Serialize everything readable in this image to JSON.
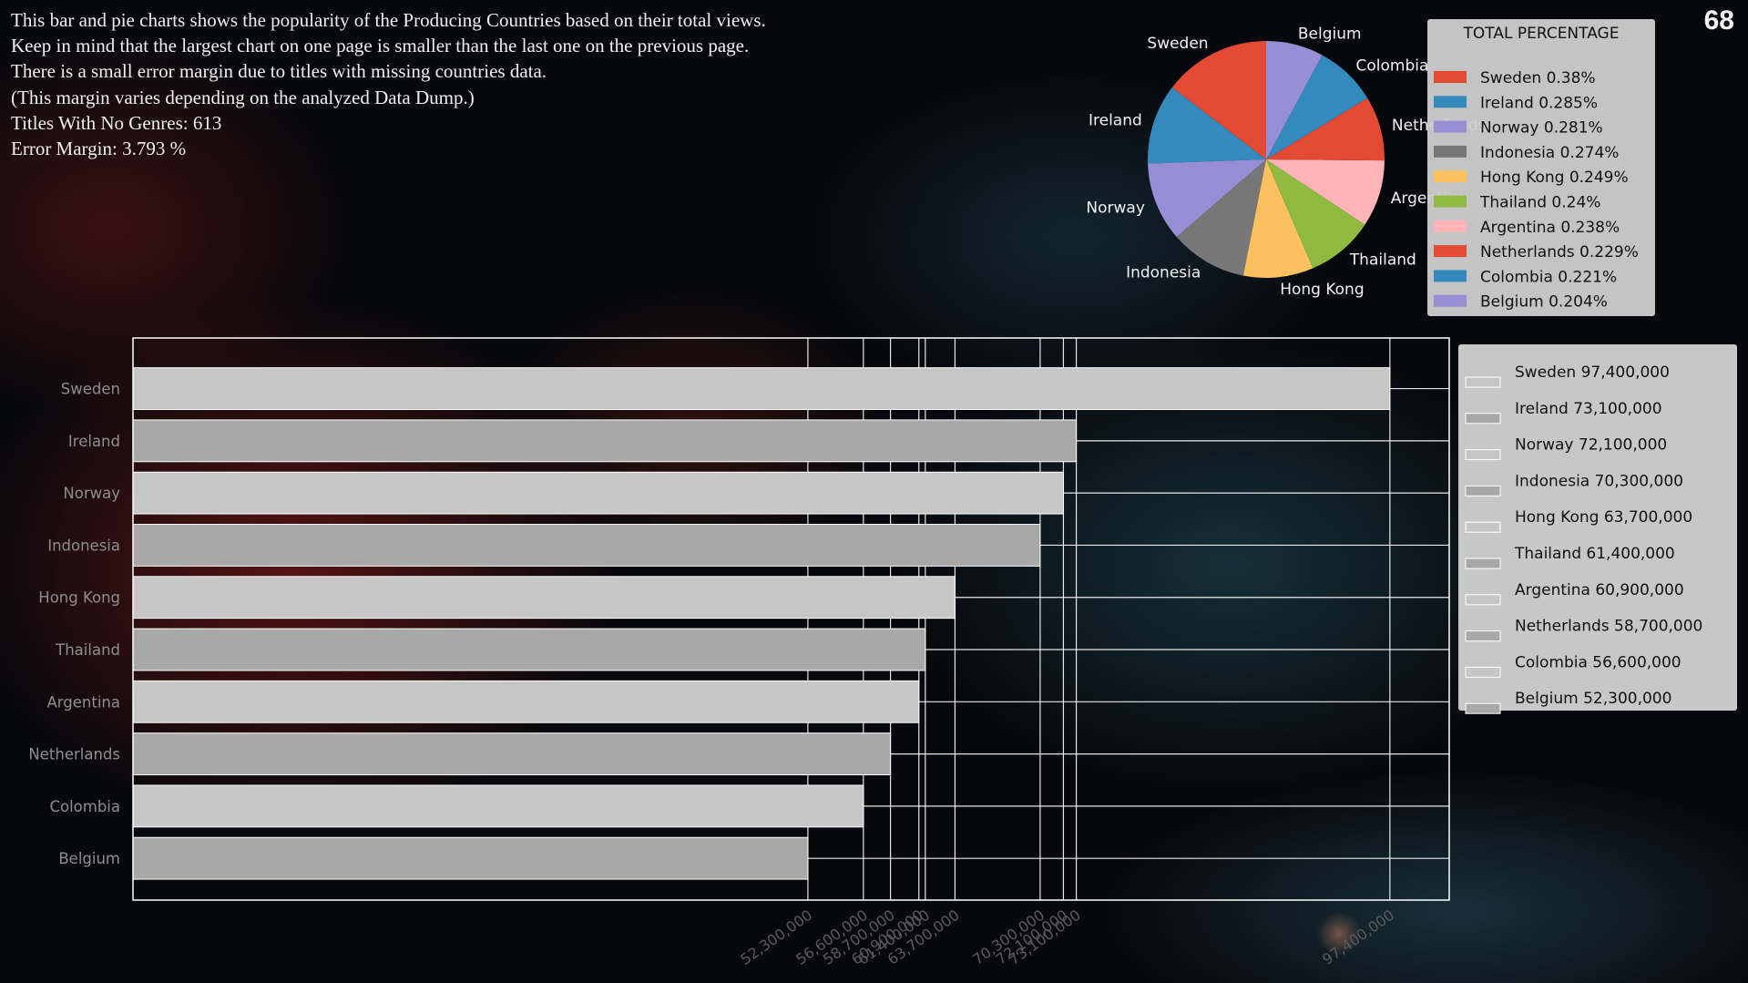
{
  "page": {
    "intro_lines": [
      "This bar and pie charts shows the popularity of the Producing Countries based on their total views.",
      "Keep in mind that the largest chart on one page is smaller than the last one on the previous page.",
      "There is a small error margin due to titles with missing countries data.",
      "(This margin varies depending on the analyzed Data Dump.)",
      "Titles With No Genres: 613",
      "Error Margin: 3.793 %"
    ],
    "page_number": "68"
  },
  "chart_data": [
    {
      "type": "pie",
      "legend_title": "TOTAL PERCENTAGE",
      "legend_position": "right",
      "labels": [
        "Sweden",
        "Ireland",
        "Norway",
        "Indonesia",
        "Hong Kong",
        "Thailand",
        "Argentina",
        "Netherlands",
        "Colombia",
        "Belgium"
      ],
      "values": [
        0.38,
        0.285,
        0.281,
        0.274,
        0.249,
        0.24,
        0.238,
        0.229,
        0.221,
        0.204
      ],
      "legend_entries": [
        "Sweden 0.38%",
        "Ireland 0.285%",
        "Norway 0.281%",
        "Indonesia 0.274%",
        "Hong Kong 0.249%",
        "Thailand 0.24%",
        "Argentina 0.238%",
        "Netherlands 0.229%",
        "Colombia 0.221%",
        "Belgium 0.204%"
      ],
      "colors": [
        "#e24a33",
        "#348abd",
        "#988ed5",
        "#777777",
        "#fbc15e",
        "#8eba42",
        "#ffb5b8",
        "#e24a33",
        "#348abd",
        "#988ed5"
      ]
    },
    {
      "type": "bar",
      "orientation": "horizontal",
      "categories": [
        "Sweden",
        "Ireland",
        "Norway",
        "Indonesia",
        "Hong Kong",
        "Thailand",
        "Argentina",
        "Netherlands",
        "Colombia",
        "Belgium"
      ],
      "values": [
        97400000,
        73100000,
        72100000,
        70300000,
        63700000,
        61400000,
        60900000,
        58700000,
        56600000,
        52300000
      ],
      "xticks": [
        "52,300,000",
        "56,600,000",
        "58,700,000",
        "60,900,000",
        "61,400,000",
        "63,700,000",
        "70,300,000",
        "72,100,000",
        "73,100,000",
        "97,400,000"
      ],
      "legend_entries": [
        "Sweden 97,400,000",
        "Ireland 73,100,000",
        "Norway 72,100,000",
        "Indonesia 70,300,000",
        "Hong Kong 63,700,000",
        "Thailand 61,400,000",
        "Argentina 60,900,000",
        "Netherlands 58,700,000",
        "Colombia 56,600,000",
        "Belgium 52,300,000"
      ],
      "legend_position": "upper right, outside plot",
      "bar_colors": [
        "#c6c6c6",
        "#a8a8a8"
      ],
      "grid": true,
      "xlim": [
        0,
        102000000
      ]
    }
  ]
}
